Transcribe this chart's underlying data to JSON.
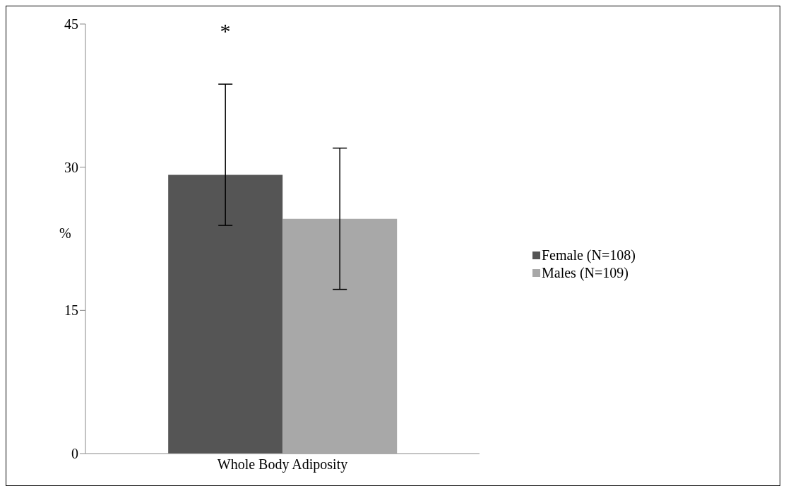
{
  "chart_data": {
    "type": "bar",
    "categories": [
      "Whole Body Adiposity"
    ],
    "ylabel": "%",
    "series": [
      {
        "name": "Female (N=108)",
        "color": "#555555",
        "values": [
          29.2
        ],
        "errors": [
          [
            23.9,
            38.7
          ]
        ]
      },
      {
        "name": "Males (N=109)",
        "color": "#a8a8a8",
        "values": [
          24.6
        ],
        "errors": [
          [
            17.2,
            32.0
          ]
        ]
      }
    ],
    "ylim": [
      0,
      45
    ],
    "yticks": [
      0,
      15,
      30,
      45
    ],
    "grid": false,
    "legend": "right",
    "annotations": [
      "*"
    ]
  }
}
